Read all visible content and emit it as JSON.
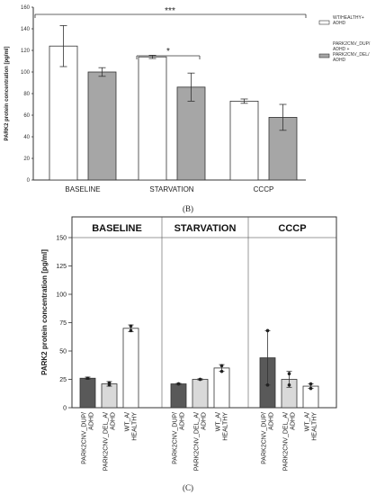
{
  "labels": {
    "panel_b": "(B)",
    "panel_c": "(C)"
  },
  "colors": {
    "bar_white": "#ffffff",
    "bar_gray": "#a6a6a6",
    "bar_dark": "#595959",
    "bar_light": "#d9d9d9"
  },
  "chart_data": [
    {
      "type": "bar",
      "ylabel": "PARK2 protein concentration [pg/ml]",
      "ylim": [
        0,
        160
      ],
      "yticks": [
        0,
        20,
        40,
        60,
        80,
        100,
        120,
        140,
        160
      ],
      "categories": [
        "BASELINE",
        "STARVATION",
        "CCCP"
      ],
      "series": [
        {
          "name": "WT/HEALTHY+ ADHD",
          "values": [
            124,
            114,
            73
          ],
          "errors": [
            19,
            1.5,
            2
          ],
          "color": "#ffffff"
        },
        {
          "name": "PARK2CNV_DUP/ ADHD + PARK2CNV_DEL/ ADHD",
          "values": [
            100,
            86,
            58
          ],
          "errors": [
            4,
            13,
            12
          ],
          "color": "#a6a6a6"
        }
      ],
      "legend_placement": "right",
      "annotations": [
        "***",
        "*"
      ]
    },
    {
      "type": "bar",
      "ylabel": "PARK2 protein concentration [pg/ml]",
      "ylim": [
        0,
        150
      ],
      "yticks": [
        0,
        25,
        50,
        75,
        100,
        125,
        150
      ],
      "panels": [
        "BASELINE",
        "STARVATION",
        "CCCP"
      ],
      "categories": [
        "PARK2CNV_DUP/ ADHD",
        "PARK2CNV_DEL_A/ ADHD",
        "WT_A/ HEALTHY"
      ],
      "groups": [
        {
          "panel": "BASELINE",
          "values": [
            26,
            21,
            70
          ],
          "errors": [
            1,
            2,
            3
          ],
          "points": [
            [
              26,
              26
            ],
            [
              20,
              22
            ],
            [
              68,
              72
            ]
          ]
        },
        {
          "panel": "STARVATION",
          "values": [
            21,
            25,
            35
          ],
          "errors": [
            0.5,
            0.5,
            3
          ],
          "points": [
            [
              21,
              21
            ],
            [
              25,
              25
            ],
            [
              32,
              37
            ]
          ]
        },
        {
          "panel": "CCCP",
          "values": [
            44,
            25,
            19
          ],
          "errors": [
            24,
            7,
            2
          ],
          "points": [
            [
              20,
              68
            ],
            [
              20,
              30
            ],
            [
              17,
              21
            ]
          ]
        }
      ],
      "colors": [
        "#595959",
        "#d9d9d9",
        "#ffffff"
      ]
    }
  ]
}
